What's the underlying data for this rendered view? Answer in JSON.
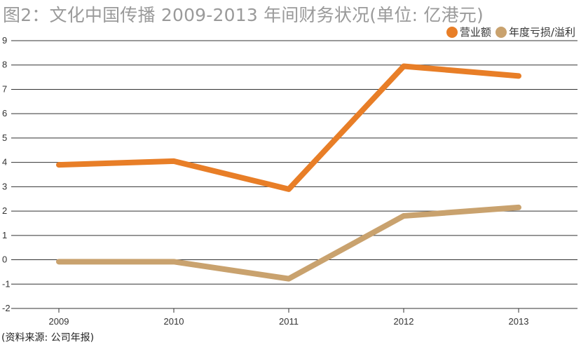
{
  "title": "图2：文化中国传播 2009-2013 年间财务状况(单位: 亿港元)",
  "source": "(资料来源: 公司年报)",
  "chart_data": {
    "type": "line",
    "title": "图2：文化中国传播 2009-2013 年间财务状况(单位: 亿港元)",
    "xlabel": "",
    "ylabel": "",
    "categories": [
      "2009",
      "2010",
      "2011",
      "2012",
      "2013"
    ],
    "ylim": [
      -2,
      9
    ],
    "yticks": [
      9,
      8,
      7,
      6,
      5,
      4,
      3,
      2,
      1,
      0,
      -1,
      -2
    ],
    "grid": true,
    "legend_position": "top-right",
    "series": [
      {
        "name": "营业额",
        "color": "#e87e27",
        "values": [
          3.9,
          4.05,
          2.9,
          7.95,
          7.55
        ]
      },
      {
        "name": "年度亏损/溢利",
        "color": "#c9a26e",
        "values": [
          -0.08,
          -0.08,
          -0.78,
          1.8,
          2.15
        ]
      }
    ]
  }
}
